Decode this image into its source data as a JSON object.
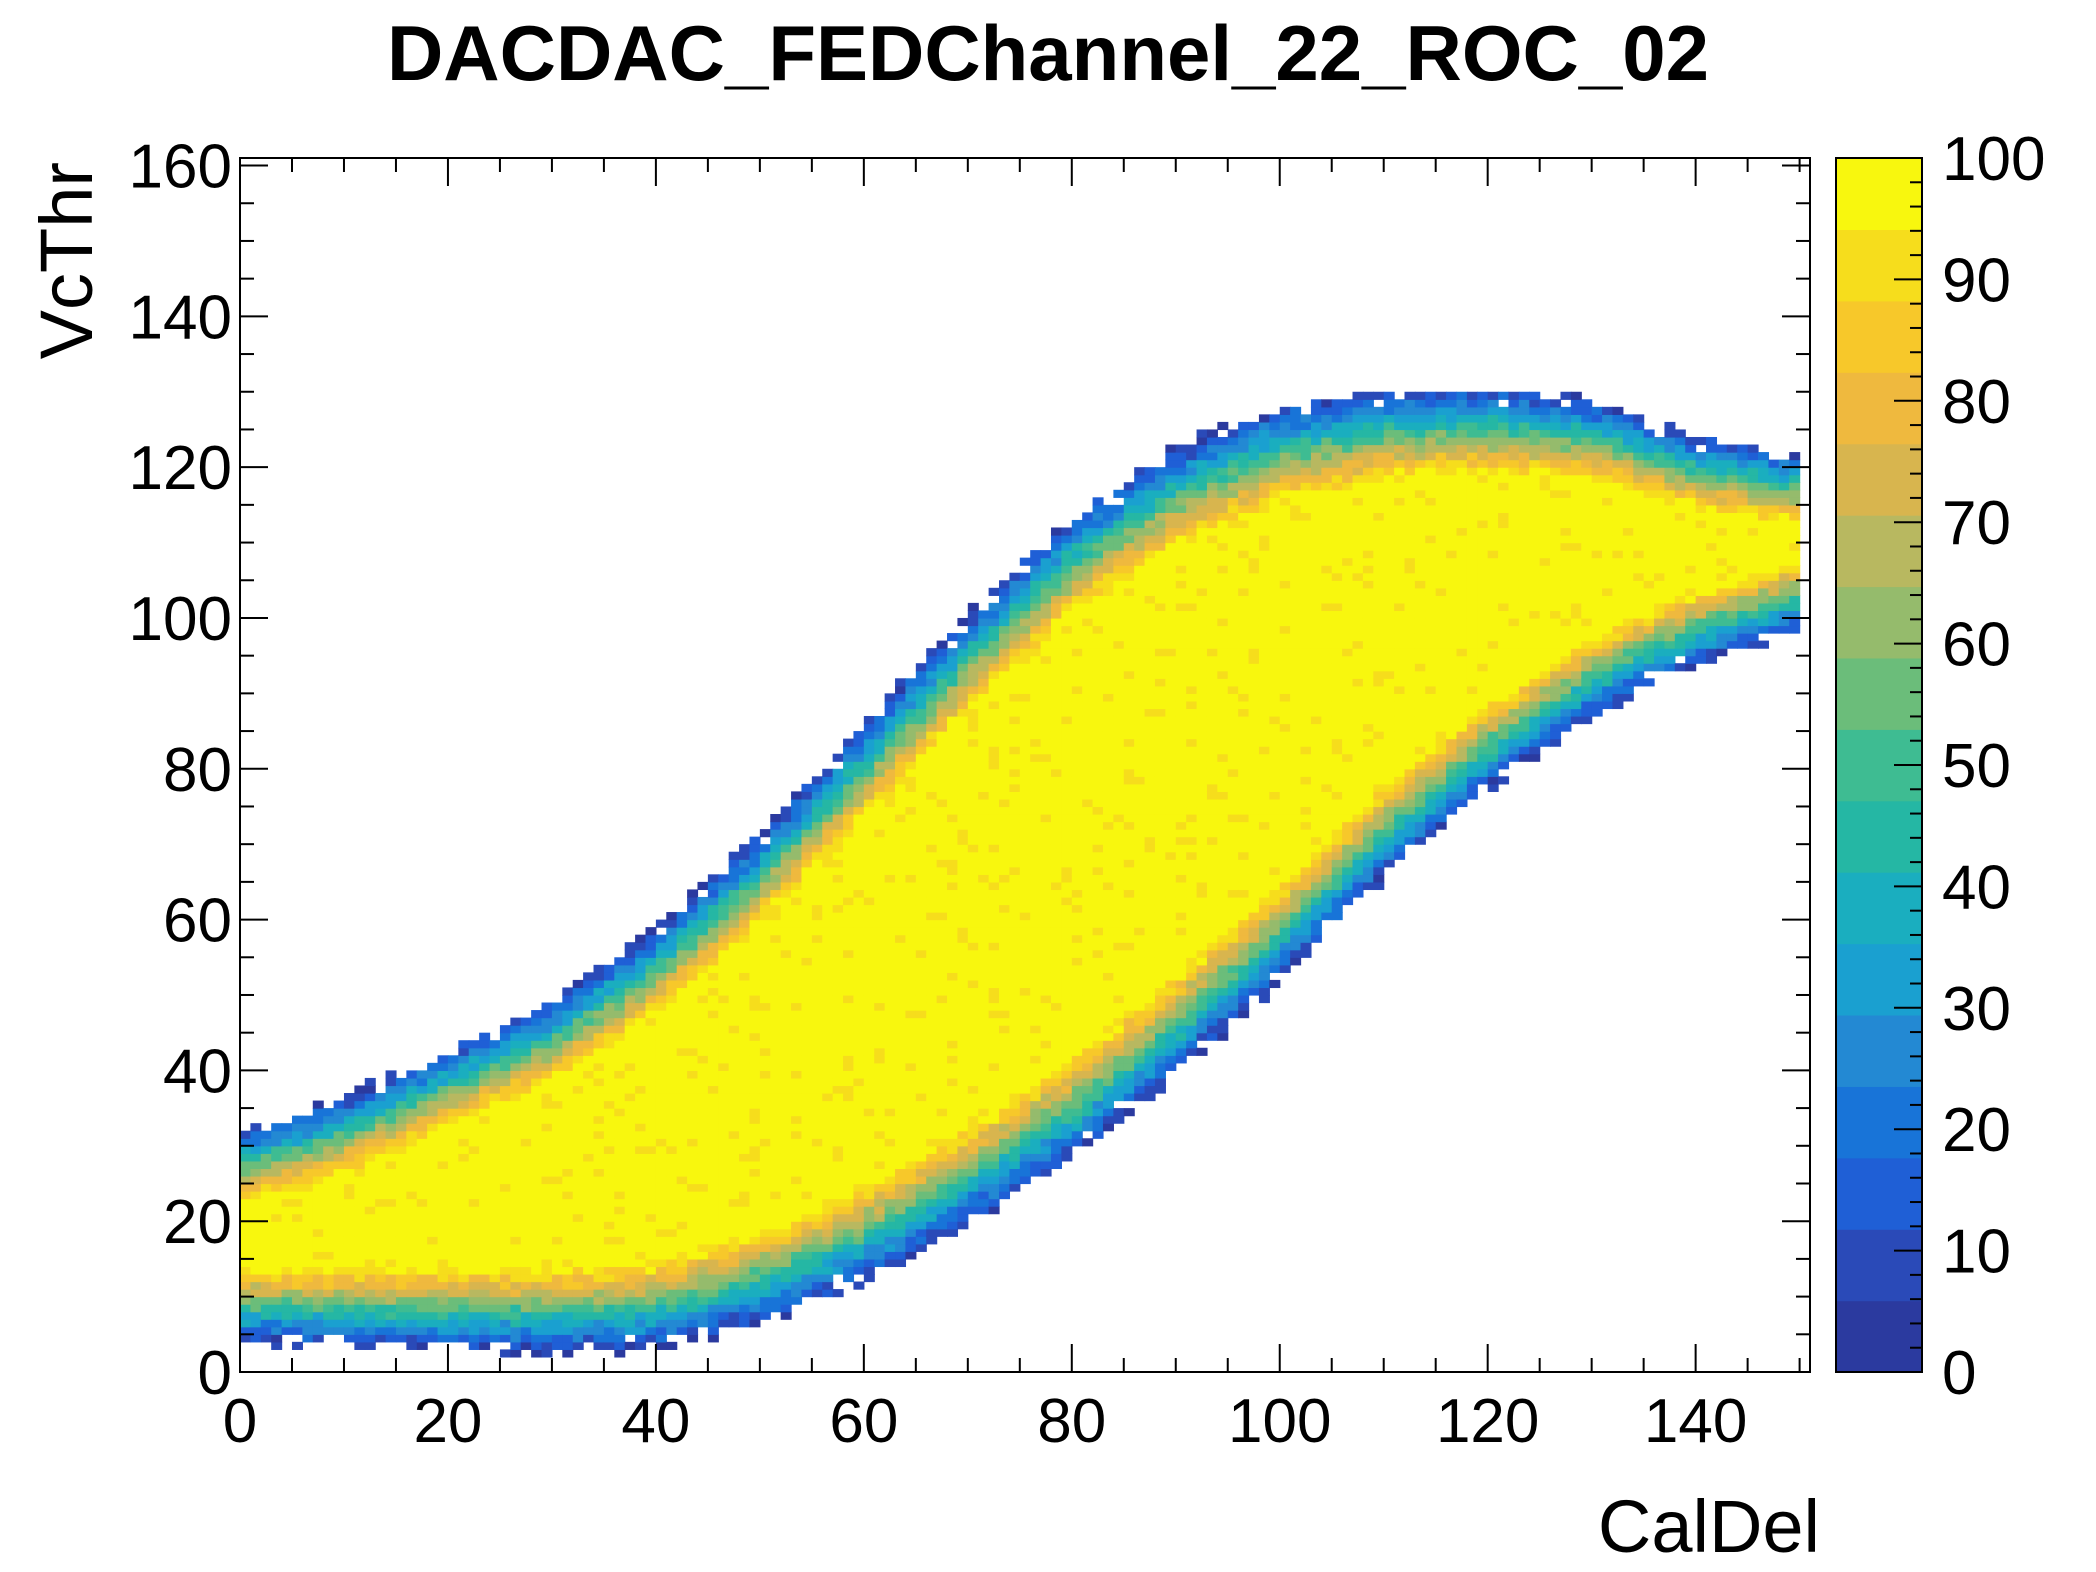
{
  "chart_data": {
    "type": "heatmap",
    "title": "DACDAC_FEDChannel_22_ROC_02",
    "xlabel": "CalDel",
    "ylabel": "VcThr",
    "xlim": [
      0,
      151
    ],
    "ylim": [
      0,
      161
    ],
    "x_ticks": [
      "0",
      "20",
      "40",
      "60",
      "80",
      "100",
      "120",
      "140"
    ],
    "y_ticks": [
      "0",
      "20",
      "40",
      "60",
      "80",
      "100",
      "120",
      "140",
      "160"
    ],
    "z_range": [
      0,
      100
    ],
    "z_ticks": [
      "0",
      "10",
      "20",
      "30",
      "40",
      "50",
      "60",
      "70",
      "80",
      "90",
      "100"
    ],
    "palette": [
      "#2b3a9f",
      "#2a4ab8",
      "#1f5fd6",
      "#1874d8",
      "#2389d3",
      "#1aa0d0",
      "#1aaebf",
      "#25b7a4",
      "#3ebc92",
      "#6bbd7a",
      "#95bb6c",
      "#b8b860",
      "#d8b54e",
      "#efb93e",
      "#f7c82a",
      "#f6dd1c",
      "#f8f70e"
    ],
    "band_center": [
      [
        0,
        18
      ],
      [
        10,
        20
      ],
      [
        20,
        23
      ],
      [
        30,
        26
      ],
      [
        40,
        31
      ],
      [
        50,
        39
      ],
      [
        60,
        49
      ],
      [
        70,
        60
      ],
      [
        80,
        71
      ],
      [
        90,
        81
      ],
      [
        100,
        90
      ],
      [
        110,
        98
      ],
      [
        120,
        104
      ],
      [
        130,
        108
      ],
      [
        140,
        109
      ],
      [
        150,
        110
      ]
    ],
    "band_halfwidth": [
      [
        0,
        4
      ],
      [
        10,
        6
      ],
      [
        20,
        9
      ],
      [
        30,
        12
      ],
      [
        40,
        16
      ],
      [
        50,
        20
      ],
      [
        60,
        24
      ],
      [
        70,
        27
      ],
      [
        80,
        29
      ],
      [
        90,
        28
      ],
      [
        100,
        25
      ],
      [
        110,
        20
      ],
      [
        120,
        15
      ],
      [
        130,
        10
      ],
      [
        140,
        5
      ],
      [
        150,
        2
      ]
    ],
    "notes": ""
  }
}
